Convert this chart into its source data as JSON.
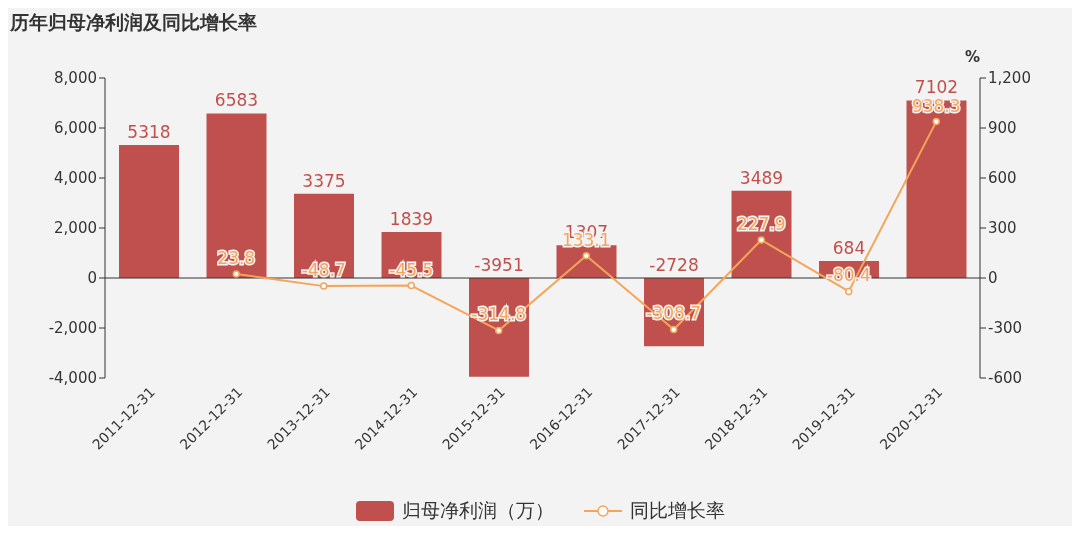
{
  "chart_data": {
    "type": "bar",
    "title": "历年归母净利润及同比增长率",
    "y2label": "%",
    "categories": [
      "2011-12-31",
      "2012-12-31",
      "2013-12-31",
      "2014-12-31",
      "2015-12-31",
      "2016-12-31",
      "2017-12-31",
      "2018-12-31",
      "2019-12-31",
      "2020-12-31"
    ],
    "series": [
      {
        "name": "归母净利润（万）",
        "color": "#c0504d",
        "values": [
          5318,
          6583,
          3375,
          1839,
          -3951,
          1307,
          -2728,
          3489,
          684,
          7102
        ]
      },
      {
        "name": "同比增长率",
        "type": "line",
        "axis": "y2",
        "color": "#f5a55a",
        "marker": "circle",
        "values": [
          null,
          23.8,
          -48.7,
          -45.5,
          -314.8,
          133.1,
          -308.7,
          227.9,
          -80.4,
          938.3
        ]
      }
    ],
    "ylim": [
      -4000,
      8000
    ],
    "yticks": [
      {
        "value": -4000,
        "label": "-4,000"
      },
      {
        "value": -2000,
        "label": "-2,000"
      },
      0,
      {
        "value": 2000,
        "label": "2,000"
      },
      {
        "value": 4000,
        "label": "4,000"
      },
      {
        "value": 6000,
        "label": "6,000"
      },
      {
        "value": 8000,
        "label": "8,000"
      }
    ],
    "y2lim": [
      -600,
      1200
    ],
    "y2ticks": [
      -600,
      -300,
      0,
      300,
      600,
      900,
      {
        "value": 1200,
        "label": "1,200"
      }
    ],
    "ref_lines": [
      {
        "axis": "y",
        "value": 0,
        "color": "#333333"
      }
    ],
    "data_labels": true,
    "grid": false,
    "legend": "bottom"
  }
}
